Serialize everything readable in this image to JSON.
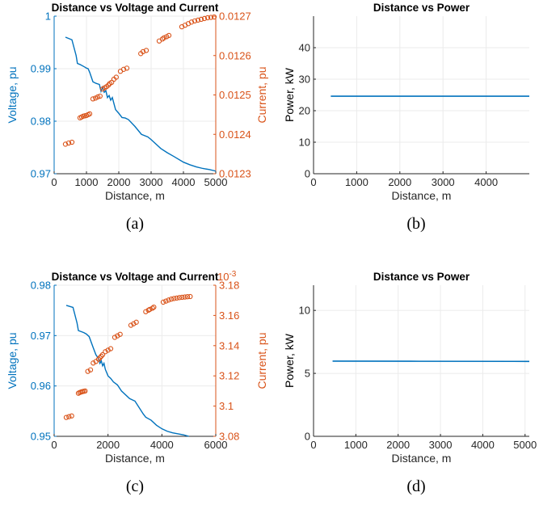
{
  "colors": {
    "voltage": "#0072bd",
    "current": "#d95319",
    "power": "#0072bd",
    "axis": "#262626",
    "grid": "#ebebeb"
  },
  "chart_data": [
    {
      "id": "a",
      "type": "line",
      "title": "Distance vs Voltage and Current",
      "caption": "(a)",
      "xlabel": "Distance, m",
      "ylabel": "Voltage, pu",
      "y2label": "Current, pu",
      "xlim": [
        0,
        5000
      ],
      "ylim": [
        0.97,
        1.0
      ],
      "y2lim": [
        0.0123,
        0.0127
      ],
      "xticks": [
        0,
        1000,
        2000,
        3000,
        4000,
        5000
      ],
      "xticklabels": [
        "0",
        "1000",
        "2000",
        "3000",
        "4000",
        "5000"
      ],
      "yticks": [
        0.97,
        0.98,
        0.99,
        1.0
      ],
      "yticklabels": [
        "0.97",
        "0.98",
        "0.99",
        "1"
      ],
      "y2ticks": [
        0.0123,
        0.0124,
        0.0125,
        0.0126,
        0.0127
      ],
      "y2ticklabels": [
        "0.0123",
        "0.0124",
        "0.0125",
        "0.0126",
        "0.0127"
      ],
      "y2exponent": "",
      "grid": true,
      "voltage": {
        "x": [
          350,
          550,
          680,
          720,
          800,
          950,
          1000,
          1050,
          1100,
          1200,
          1300,
          1400,
          1450,
          1500,
          1550,
          1600,
          1650,
          1700,
          1750,
          1800,
          1900,
          2000,
          2100,
          2200,
          2300,
          2500,
          2700,
          2900,
          3000,
          3300,
          3500,
          3700,
          4000,
          4200,
          4400,
          4600,
          4800,
          5000
        ],
        "y": [
          0.996,
          0.9955,
          0.9925,
          0.991,
          0.9908,
          0.9903,
          0.9901,
          0.99,
          0.9893,
          0.9875,
          0.9872,
          0.987,
          0.9857,
          0.9865,
          0.9855,
          0.9858,
          0.9845,
          0.9849,
          0.984,
          0.9845,
          0.9822,
          0.9815,
          0.9807,
          0.9806,
          0.9803,
          0.979,
          0.9775,
          0.977,
          0.9765,
          0.9748,
          0.974,
          0.9733,
          0.9722,
          0.9717,
          0.9713,
          0.971,
          0.9708,
          0.9705
        ]
      },
      "current": {
        "x": [
          350,
          450,
          550,
          800,
          850,
          900,
          950,
          1000,
          1050,
          1100,
          1200,
          1280,
          1350,
          1420,
          1500,
          1560,
          1620,
          1680,
          1720,
          1780,
          1850,
          1920,
          2050,
          2150,
          2250,
          2680,
          2750,
          2850,
          3250,
          3350,
          3400,
          3480,
          3550,
          3950,
          4050,
          4150,
          4250,
          4350,
          4450,
          4550,
          4650,
          4750,
          4850,
          4950
        ],
        "y": [
          0.012375,
          0.012378,
          0.01238,
          0.012442,
          0.012444,
          0.012446,
          0.012447,
          0.012448,
          0.01245,
          0.012452,
          0.01249,
          0.012492,
          0.012495,
          0.012497,
          0.012515,
          0.012518,
          0.012521,
          0.012525,
          0.012529,
          0.012532,
          0.01254,
          0.012545,
          0.01256,
          0.012565,
          0.012568,
          0.012605,
          0.01261,
          0.012613,
          0.012637,
          0.012642,
          0.012645,
          0.012648,
          0.012651,
          0.012673,
          0.012677,
          0.012681,
          0.012685,
          0.012688,
          0.01269,
          0.012692,
          0.012694,
          0.012696,
          0.012697,
          0.012698
        ]
      }
    },
    {
      "id": "b",
      "type": "line",
      "title": "Distance vs Power",
      "caption": "(b)",
      "xlabel": "Distance, m",
      "ylabel": "Power, kW",
      "xlim": [
        0,
        5000
      ],
      "ylim": [
        0,
        50
      ],
      "xticks": [
        0,
        1000,
        2000,
        3000,
        4000
      ],
      "xticklabels": [
        "0",
        "1000",
        "2000",
        "3000",
        "4000"
      ],
      "yticks": [
        0,
        10,
        20,
        30,
        40
      ],
      "yticklabels": [
        "0",
        "10",
        "20",
        "30",
        "40"
      ],
      "grid": true,
      "power": {
        "x": [
          400,
          5000
        ],
        "y": [
          24.6,
          24.6
        ]
      }
    },
    {
      "id": "c",
      "type": "line",
      "title": "Distance vs Voltage and Current",
      "caption": "(c)",
      "xlabel": "Distance, m",
      "ylabel": "Voltage, pu",
      "y2label": "Current, pu",
      "xlim": [
        0,
        6000
      ],
      "ylim": [
        0.95,
        0.98
      ],
      "y2lim": [
        3.08,
        3.18
      ],
      "xticks": [
        0,
        2000,
        4000,
        6000
      ],
      "xticklabels": [
        "0",
        "2000",
        "4000",
        "6000"
      ],
      "yticks": [
        0.95,
        0.96,
        0.97,
        0.98
      ],
      "yticklabels": [
        "0.95",
        "0.96",
        "0.97",
        "0.98"
      ],
      "y2ticks": [
        3.08,
        3.1,
        3.12,
        3.14,
        3.16,
        3.18
      ],
      "y2ticklabels": [
        "3.08",
        "3.1",
        "3.12",
        "3.14",
        "3.16",
        "3.18"
      ],
      "y2exponent": "10-3",
      "grid": true,
      "voltage": {
        "x": [
          450,
          700,
          850,
          900,
          1100,
          1200,
          1300,
          1450,
          1550,
          1650,
          1700,
          1750,
          1800,
          1850,
          1900,
          2000,
          2100,
          2200,
          2350,
          2500,
          2800,
          3000,
          3300,
          3400,
          3600,
          3800,
          4000,
          4200,
          4400,
          4600,
          4800,
          5000
        ],
        "y": [
          0.976,
          0.9756,
          0.9725,
          0.971,
          0.9706,
          0.9703,
          0.9698,
          0.9676,
          0.9662,
          0.9654,
          0.9645,
          0.965,
          0.964,
          0.9645,
          0.9633,
          0.962,
          0.9615,
          0.9608,
          0.9602,
          0.959,
          0.9575,
          0.957,
          0.9545,
          0.9538,
          0.9532,
          0.9522,
          0.9515,
          0.951,
          0.9507,
          0.9505,
          0.9503,
          0.95
        ]
      },
      "current": {
        "x": [
          450,
          550,
          650,
          900,
          950,
          1000,
          1050,
          1100,
          1150,
          1250,
          1350,
          1450,
          1550,
          1650,
          1700,
          1750,
          1800,
          1900,
          2000,
          2100,
          2250,
          2350,
          2450,
          2850,
          2950,
          3050,
          3400,
          3500,
          3550,
          3650,
          3700,
          4050,
          4150,
          4250,
          4350,
          4450,
          4550,
          4650,
          4750,
          4850,
          4950,
          5050
        ],
        "y": [
          3.0925,
          3.093,
          3.0935,
          3.1085,
          3.109,
          3.1093,
          3.1096,
          3.1098,
          3.11,
          3.123,
          3.124,
          3.1285,
          3.1295,
          3.131,
          3.132,
          3.133,
          3.134,
          3.136,
          3.137,
          3.138,
          3.1455,
          3.1465,
          3.1475,
          3.1535,
          3.1545,
          3.1555,
          3.1625,
          3.1635,
          3.164,
          3.1648,
          3.1655,
          3.1688,
          3.1695,
          3.1702,
          3.1708,
          3.1712,
          3.1715,
          3.1718,
          3.172,
          3.1722,
          3.1724,
          3.1725
        ]
      }
    },
    {
      "id": "d",
      "type": "line",
      "title": "Distance vs Power",
      "caption": "(d)",
      "xlabel": "Distance, m",
      "ylabel": "Power, kW",
      "xlim": [
        0,
        5100
      ],
      "ylim": [
        0,
        12
      ],
      "xticks": [
        0,
        1000,
        2000,
        3000,
        4000,
        5000
      ],
      "xticklabels": [
        "0",
        "1000",
        "2000",
        "3000",
        "4000",
        "5000"
      ],
      "yticks": [
        0,
        5,
        10
      ],
      "yticklabels": [
        "0",
        "5",
        "10"
      ],
      "grid": true,
      "power": {
        "x": [
          450,
          2500,
          5100
        ],
        "y": [
          5.97,
          5.96,
          5.95
        ]
      }
    }
  ]
}
